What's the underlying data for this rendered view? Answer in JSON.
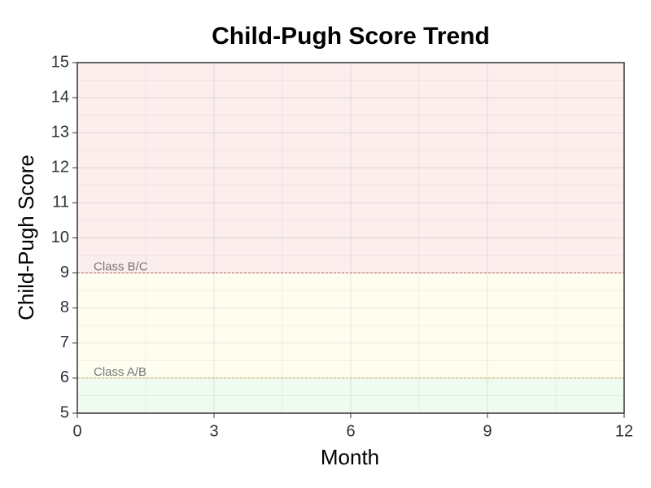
{
  "chart_data": {
    "type": "line",
    "title": "Child-Pugh Score Trend",
    "x_label": "Month",
    "y_label": "Child-Pugh Score",
    "series": [],
    "xlim": [
      0,
      12
    ],
    "xticks": [
      0,
      3,
      6,
      9,
      12
    ],
    "ylim": [
      5,
      15
    ],
    "yticks": [
      5,
      6,
      7,
      8,
      9,
      10,
      11,
      12,
      13,
      14,
      15
    ],
    "grid": true,
    "minor_grid": true,
    "bands": [
      {
        "from": 5,
        "to": 6,
        "color": "#effbf1"
      },
      {
        "from": 6,
        "to": 9,
        "color": "#fefef0"
      },
      {
        "from": 9,
        "to": 15,
        "color": "#fdeeee"
      }
    ],
    "thresholds": [
      {
        "value": 9,
        "label": "Class B/C",
        "color": "#b86a6a"
      },
      {
        "value": 6,
        "label": "Class A/B",
        "color": "#c4b061"
      }
    ]
  }
}
